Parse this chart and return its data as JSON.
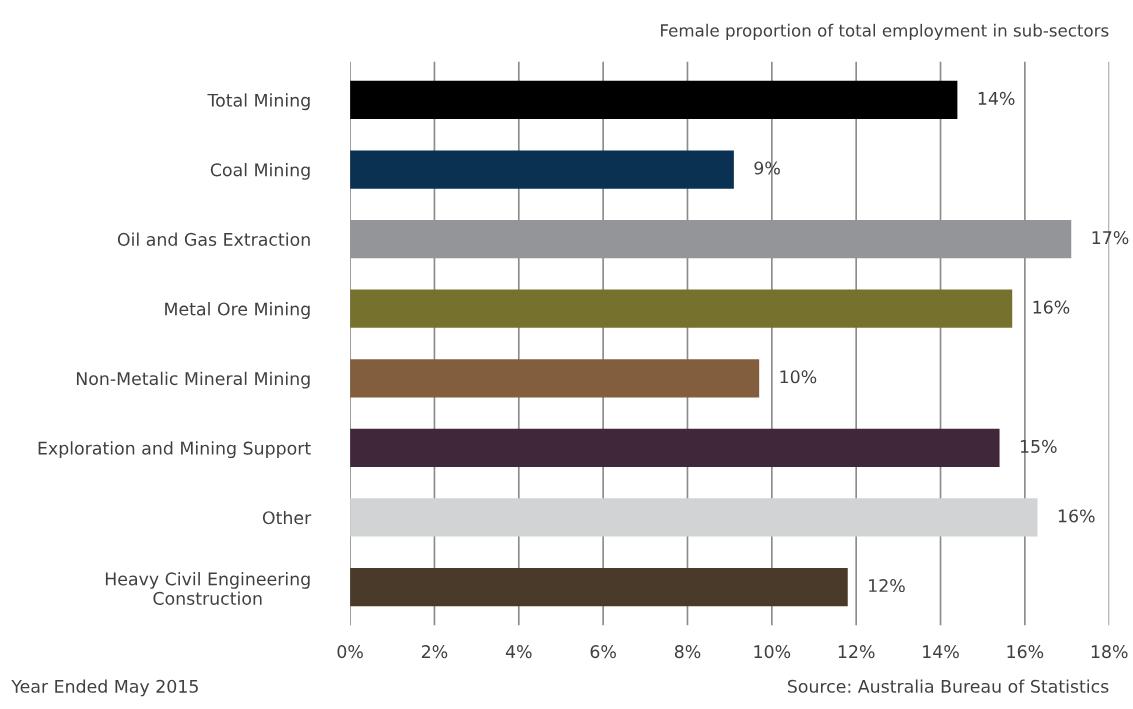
{
  "chart_data": {
    "type": "bar",
    "orientation": "horizontal",
    "title": "Female proportion of total employment in sub-sectors",
    "categories": [
      "Total Mining",
      "Coal Mining",
      "Oil and Gas Extraction",
      "Metal Ore Mining",
      "Non-Metalic Mineral Mining",
      "Exploration and Mining Support",
      "Other",
      "Heavy Civil Engineering\nConstruction"
    ],
    "values": [
      14.4,
      9.1,
      17.1,
      15.7,
      9.7,
      15.4,
      16.3,
      11.8
    ],
    "value_labels": [
      "14%",
      "9%",
      "17%",
      "16%",
      "10%",
      "15%",
      "16%",
      "12%"
    ],
    "colors": [
      "#000000",
      "#0b3152",
      "#939598",
      "#77712e",
      "#835e3e",
      "#41273a",
      "#d1d3d4",
      "#4a3a2a"
    ],
    "xlim": [
      0,
      18
    ],
    "xticks": [
      {
        "value": 0,
        "label": "0%"
      },
      {
        "value": 2,
        "label": "2%"
      },
      {
        "value": 4,
        "label": "4%"
      },
      {
        "value": 6,
        "label": "6%"
      },
      {
        "value": 8,
        "label": "8%"
      },
      {
        "value": 10,
        "label": "10%"
      },
      {
        "value": 12,
        "label": "12%"
      },
      {
        "value": 14,
        "label": "14%"
      },
      {
        "value": 16,
        "label": "16%"
      },
      {
        "value": 18,
        "label": "18%"
      }
    ],
    "grid": "x",
    "annotations": [
      "Year Ended May 2015",
      "Source: Australia Bureau of Statistics"
    ]
  }
}
